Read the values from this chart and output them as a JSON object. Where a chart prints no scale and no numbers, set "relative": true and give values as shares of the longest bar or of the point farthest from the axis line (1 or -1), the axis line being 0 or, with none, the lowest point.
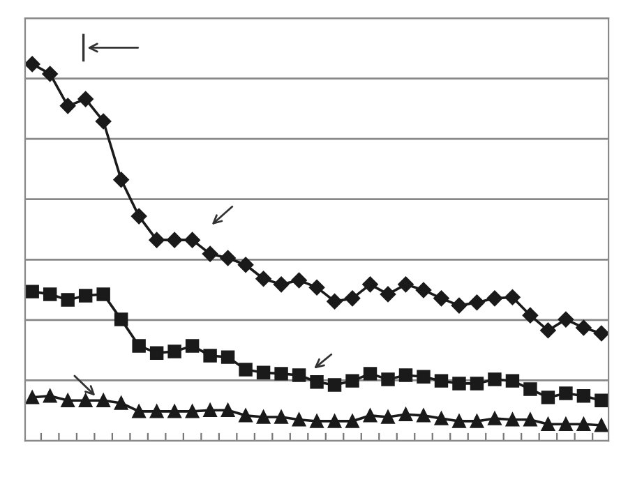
{
  "chart_data": {
    "type": "line",
    "relative": true,
    "grid": "y",
    "legend": false,
    "tick_labels": false,
    "categories": [
      null,
      null,
      null,
      null,
      null,
      null,
      null,
      null,
      null,
      null,
      null,
      null,
      null,
      null,
      null,
      null,
      null,
      null,
      null,
      null,
      null,
      null,
      null,
      null,
      null,
      null,
      null,
      null,
      null,
      null,
      null,
      null,
      null
    ],
    "series": [
      {
        "color": "#1a1a1a",
        "marker": "diamond",
        "values": [
          1.0,
          0.974,
          0.889,
          0.907,
          0.848,
          0.693,
          0.596,
          0.533,
          0.533,
          0.533,
          0.496,
          0.485,
          0.467,
          0.43,
          0.415,
          0.426,
          0.407,
          0.37,
          0.378,
          0.415,
          0.389,
          0.415,
          0.4,
          0.378,
          0.359,
          0.367,
          0.378,
          0.381,
          0.333,
          0.293,
          0.322,
          0.3,
          0.285
        ]
      },
      {
        "color": "#1a1a1a",
        "marker": "square",
        "values": [
          0.396,
          0.389,
          0.374,
          0.385,
          0.389,
          0.322,
          0.252,
          0.233,
          0.237,
          0.252,
          0.226,
          0.222,
          0.189,
          0.181,
          0.178,
          0.174,
          0.156,
          0.148,
          0.159,
          0.178,
          0.163,
          0.174,
          0.17,
          0.159,
          0.152,
          0.152,
          0.163,
          0.159,
          0.137,
          0.115,
          0.126,
          0.119,
          0.107
        ]
      },
      {
        "color": "#1a1a1a",
        "marker": "triangle",
        "values": [
          0.115,
          0.119,
          0.107,
          0.107,
          0.107,
          0.1,
          0.078,
          0.078,
          0.078,
          0.078,
          0.081,
          0.081,
          0.067,
          0.063,
          0.063,
          0.056,
          0.052,
          0.052,
          0.052,
          0.067,
          0.063,
          0.07,
          0.067,
          0.059,
          0.052,
          0.052,
          0.059,
          0.056,
          0.056,
          0.044,
          0.044,
          0.044,
          0.041
        ]
      }
    ]
  }
}
